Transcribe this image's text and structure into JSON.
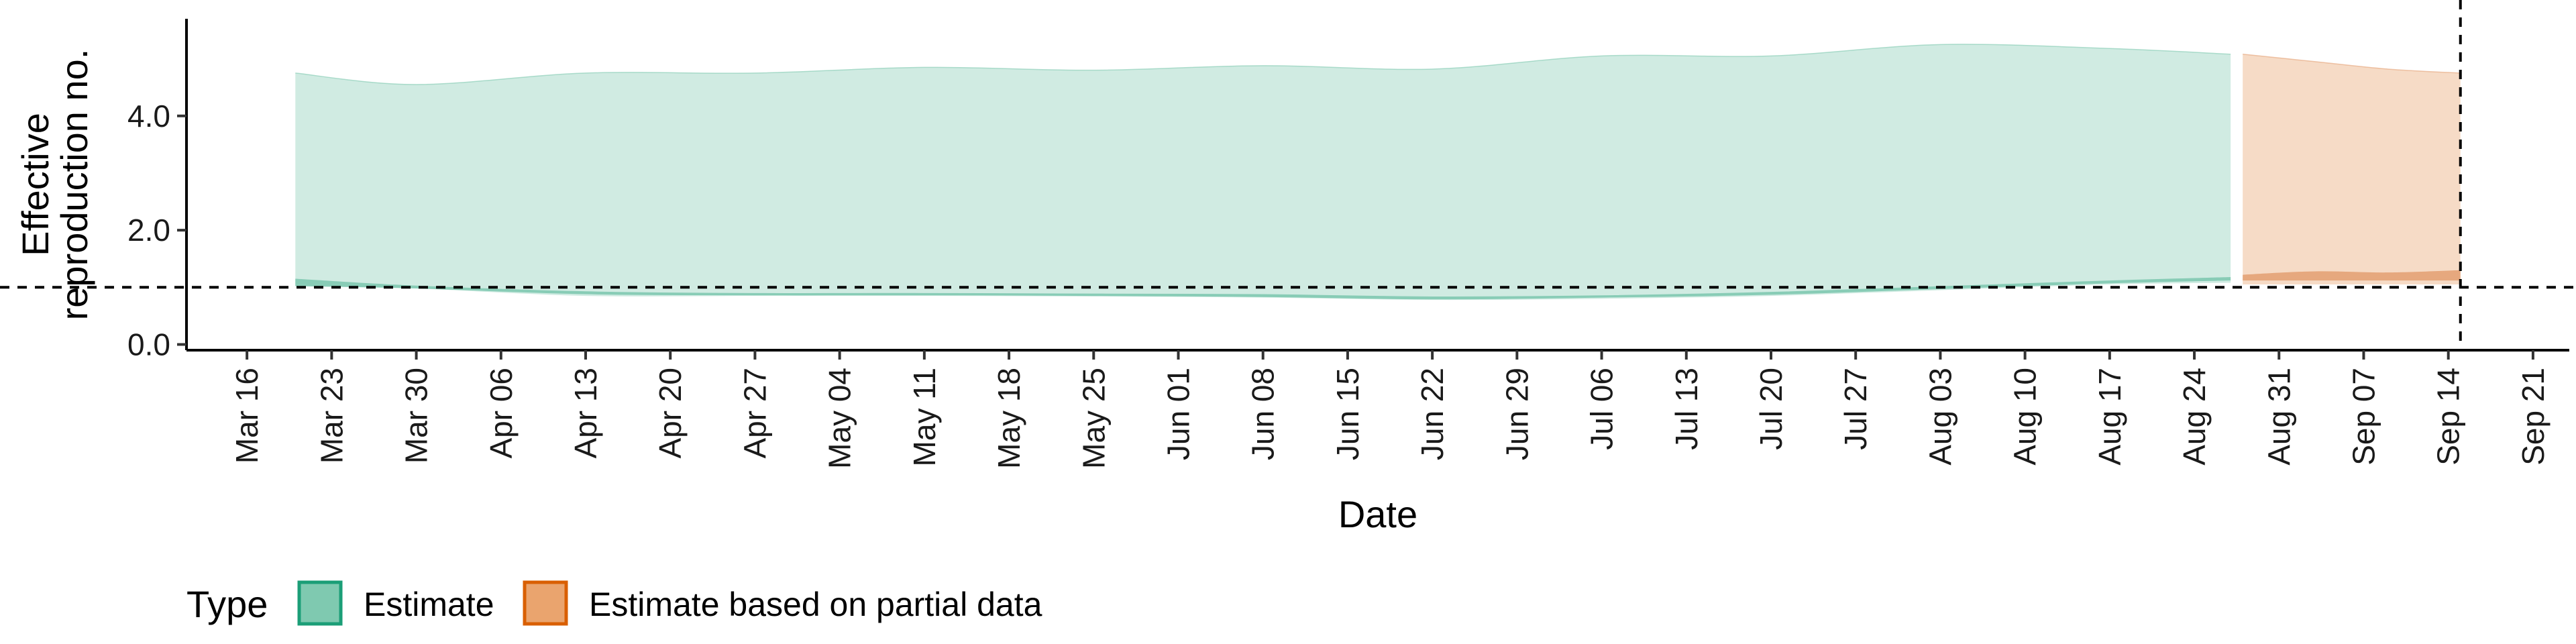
{
  "chart_data": {
    "type": "area",
    "xlabel": "Date",
    "ylabel_lines": [
      "Effective",
      "reproduction no."
    ],
    "ylim": [
      -0.1,
      5.7
    ],
    "yticks": [
      0.0,
      2.0,
      4.0
    ],
    "ytick_labels": [
      "0.0",
      "2.0",
      "4.0"
    ],
    "x_start": "2020-03-11",
    "x_end": "2020-09-24",
    "xtick_labels": [
      "Mar 16",
      "Mar 23",
      "Mar 30",
      "Apr 06",
      "Apr 13",
      "Apr 20",
      "Apr 27",
      "May 04",
      "May 11",
      "May 18",
      "May 25",
      "Jun 01",
      "Jun 08",
      "Jun 15",
      "Jun 22",
      "Jun 29",
      "Jul 06",
      "Jul 13",
      "Jul 20",
      "Jul 27",
      "Aug 03",
      "Aug 10",
      "Aug 17",
      "Aug 24",
      "Aug 31",
      "Sep 07",
      "Sep 14",
      "Sep 21"
    ],
    "xtick_dates": [
      "2020-03-16",
      "2020-03-23",
      "2020-03-30",
      "2020-04-06",
      "2020-04-13",
      "2020-04-20",
      "2020-04-27",
      "2020-05-04",
      "2020-05-11",
      "2020-05-18",
      "2020-05-25",
      "2020-06-01",
      "2020-06-08",
      "2020-06-15",
      "2020-06-22",
      "2020-06-29",
      "2020-07-06",
      "2020-07-13",
      "2020-07-20",
      "2020-07-27",
      "2020-08-03",
      "2020-08-10",
      "2020-08-17",
      "2020-08-24",
      "2020-08-31",
      "2020-09-07",
      "2020-09-14",
      "2020-09-21"
    ],
    "reference_line_y": 1.0,
    "reference_date": "2020-09-15",
    "series": [
      {
        "name": "Estimate",
        "color": "#1b9e77",
        "fill_light": "#d0ebe2",
        "fill_dark": "#80c9b1",
        "points": [
          {
            "date": "2020-03-20",
            "upper": 4.75,
            "lower_outer": 1.05,
            "lower_inner": 1.02,
            "upper_inner": 1.15
          },
          {
            "date": "2020-03-30",
            "upper": 4.55,
            "lower_outer": 0.98,
            "lower_inner": 0.98,
            "upper_inner": 1.03
          },
          {
            "date": "2020-04-13",
            "upper": 4.75,
            "lower_outer": 0.85,
            "lower_inner": 0.88,
            "upper_inner": 0.93
          },
          {
            "date": "2020-04-27",
            "upper": 4.75,
            "lower_outer": 0.85,
            "lower_inner": 0.86,
            "upper_inner": 0.9
          },
          {
            "date": "2020-05-11",
            "upper": 4.85,
            "lower_outer": 0.85,
            "lower_inner": 0.86,
            "upper_inner": 0.9
          },
          {
            "date": "2020-05-25",
            "upper": 4.8,
            "lower_outer": 0.84,
            "lower_inner": 0.85,
            "upper_inner": 0.89
          },
          {
            "date": "2020-06-08",
            "upper": 4.88,
            "lower_outer": 0.82,
            "lower_inner": 0.83,
            "upper_inner": 0.88
          },
          {
            "date": "2020-06-22",
            "upper": 4.82,
            "lower_outer": 0.78,
            "lower_inner": 0.79,
            "upper_inner": 0.84
          },
          {
            "date": "2020-07-06",
            "upper": 5.05,
            "lower_outer": 0.8,
            "lower_inner": 0.82,
            "upper_inner": 0.86
          },
          {
            "date": "2020-07-20",
            "upper": 5.05,
            "lower_outer": 0.85,
            "lower_inner": 0.87,
            "upper_inner": 0.92
          },
          {
            "date": "2020-08-03",
            "upper": 5.25,
            "lower_outer": 0.95,
            "lower_inner": 0.97,
            "upper_inner": 1.02
          },
          {
            "date": "2020-08-17",
            "upper": 5.18,
            "lower_outer": 1.05,
            "lower_inner": 1.07,
            "upper_inner": 1.12
          },
          {
            "date": "2020-08-27",
            "upper": 5.08,
            "lower_outer": 1.08,
            "lower_inner": 1.12,
            "upper_inner": 1.18
          }
        ]
      },
      {
        "name": "Estimate based on partial data",
        "color": "#d95f02",
        "fill_light": "#f6dbc6",
        "fill_dark": "#e4a276",
        "points": [
          {
            "date": "2020-08-28",
            "upper": 5.08,
            "lower_outer": 1.05,
            "lower_inner": 1.12,
            "upper_inner": 1.22
          },
          {
            "date": "2020-09-03",
            "upper": 4.95,
            "lower_outer": 1.05,
            "lower_inner": 1.12,
            "upper_inner": 1.28
          },
          {
            "date": "2020-09-09",
            "upper": 4.82,
            "lower_outer": 1.05,
            "lower_inner": 1.12,
            "upper_inner": 1.26
          },
          {
            "date": "2020-09-15",
            "upper": 4.75,
            "lower_outer": 1.05,
            "lower_inner": 1.12,
            "upper_inner": 1.3
          }
        ]
      }
    ],
    "legend": {
      "title": "Type",
      "placement": "bottom-left",
      "items": [
        {
          "label": "Estimate",
          "fill": "#7fc9b0",
          "stroke": "#1b9e77"
        },
        {
          "label": "Estimate based on partial data",
          "fill": "#eaa46e",
          "stroke": "#d95f02"
        }
      ]
    }
  }
}
